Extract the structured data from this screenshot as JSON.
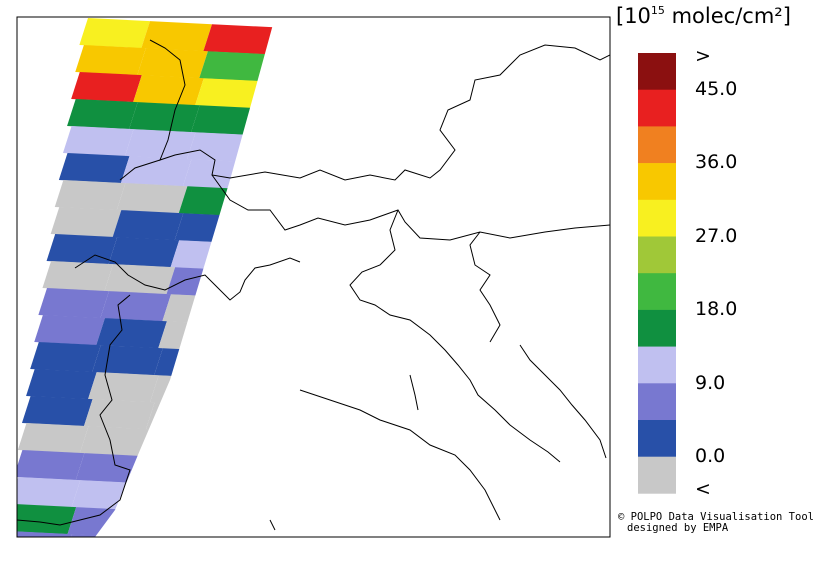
{
  "legend": {
    "unit_prefix": "[10",
    "unit_exponent": "15",
    "unit_suffix": " molec/cm²]",
    "labels": [
      ">",
      "45.0",
      "36.0",
      "27.0",
      "18.0",
      "9.0",
      "0.0",
      "<"
    ],
    "colors": [
      "#8b1010",
      "#e82020",
      "#f08020",
      "#f8c800",
      "#f8f020",
      "#a0c838",
      "#40b840",
      "#109040",
      "#c0c0f0",
      "#7878d0",
      "#2850a8",
      "#c8c8c8"
    ]
  },
  "credit": {
    "line1": "© POLPO Data Visualisation Tool",
    "line2": "designed by EMPA"
  }
}
